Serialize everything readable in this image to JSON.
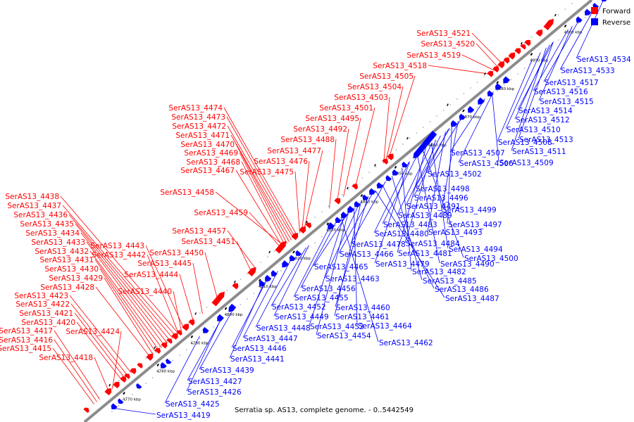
{
  "caption": "Serratia sp. AS13, complete genome. - 0..5442549",
  "colors": {
    "forward": "#ff0000",
    "reverse": "#0000ff",
    "backbone": "#999999",
    "tick": "#000000"
  },
  "legend": [
    {
      "name": "forward",
      "label": "Forward",
      "color": "#ff0000"
    },
    {
      "name": "reverse",
      "label": "Reverse",
      "color": "#0000ff"
    }
  ],
  "axis_labels": [
    "4770 kbp",
    "4780 kbp",
    "4790 kbp",
    "4800 kbp",
    "4810 kbp",
    "4820 kbp",
    "4830 kbp",
    "4840 kbp",
    "4850 kbp",
    "4860 kbp",
    "4870 kbp",
    "4880 kbp",
    "4890 kbp",
    "4900 kbp"
  ],
  "forward_labels": [
    "SerAS13_4521",
    "SerAS13_4520",
    "SerAS13_4519",
    "SerAS13_4518",
    "SerAS13_4505",
    "SerAS13_4504",
    "SerAS13_4503",
    "SerAS13_4501",
    "SerAS13_4495",
    "SerAS13_4492",
    "SerAS13_4488",
    "SerAS13_4477",
    "SerAS13_4476",
    "SerAS13_4475",
    "SerAS13_4474",
    "SerAS13_4473",
    "SerAS13_4472",
    "SerAS13_4471",
    "SerAS13_4470",
    "SerAS13_4469",
    "SerAS13_4468",
    "SerAS13_4467",
    "SerAS13_4458",
    "SerAS13_4459",
    "SerAS13_4457",
    "SerAS13_4451",
    "SerAS13_4450",
    "SerAS13_4445",
    "SerAS13_4444",
    "SerAS13_4443",
    "SerAS13_4442",
    "SerAS13_4440",
    "SerAS13_4438",
    "SerAS13_4437",
    "SerAS13_4436",
    "SerAS13_4435",
    "SerAS13_4434",
    "SerAS13_4433",
    "SerAS13_4432",
    "SerAS13_4431",
    "SerAS13_4430",
    "SerAS13_4429",
    "SerAS13_4428",
    "SerAS13_4423",
    "SerAS13_4422",
    "SerAS13_4421",
    "SerAS13_4420",
    "SerAS13_4424",
    "SerAS13_4417",
    "SerAS13_4416",
    "SerAS13_4415",
    "SerAS13_4418"
  ],
  "reverse_labels": [
    "SerAS13_4534",
    "SerAS13_4533",
    "SerAS13_4517",
    "SerAS13_4516",
    "SerAS13_4515",
    "SerAS13_4514",
    "SerAS13_4512",
    "SerAS13_4510",
    "SerAS13_4508",
    "SerAS13_4513",
    "SerAS13_4511",
    "SerAS13_4507",
    "SerAS13_4506",
    "SerAS13_4509",
    "SerAS13_4502",
    "SerAS13_4498",
    "SerAS13_4496",
    "SerAS13_4491",
    "SerAS13_4499",
    "SerAS13_4489",
    "SerAS13_4497",
    "SerAS13_4483",
    "SerAS13_4493",
    "SerAS13_4480",
    "SerAS13_4478",
    "SerAS13_4484",
    "SerAS13_4494",
    "SerAS13_4466",
    "SerAS13_4481",
    "SerAS13_4500",
    "SerAS13_4479",
    "SerAS13_4490",
    "SerAS13_4465",
    "SerAS13_4482",
    "SerAS13_4463",
    "SerAS13_4485",
    "SerAS13_4456",
    "SerAS13_4486",
    "SerAS13_4455",
    "SerAS13_4487",
    "SerAS13_4452",
    "SerAS13_4460",
    "SerAS13_4449",
    "SerAS13_4461",
    "SerAS13_4453",
    "SerAS13_4464",
    "SerAS13_4448",
    "SerAS13_4454",
    "SerAS13_4447",
    "SerAS13_4462",
    "SerAS13_4446",
    "SerAS13_4441",
    "SerAS13_4439",
    "SerAS13_4427",
    "SerAS13_4426",
    "SerAS13_4425",
    "SerAS13_4419"
  ]
}
